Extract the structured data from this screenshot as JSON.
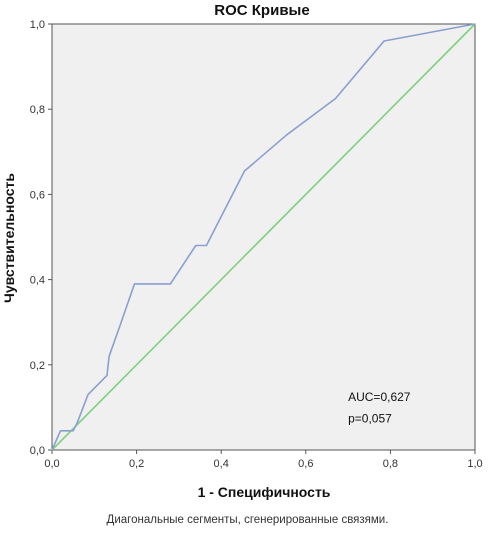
{
  "chart_data": {
    "type": "line",
    "title": "ROC Кривые",
    "xlabel": "1 - Специфичность",
    "ylabel": "Чувствительность",
    "xlim": [
      0,
      1
    ],
    "ylim": [
      0,
      1
    ],
    "x_ticks": [
      "0,0",
      "0,2",
      "0,4",
      "0,6",
      "0,8",
      "1,0"
    ],
    "y_ticks": [
      "0,0",
      "0,2",
      "0,4",
      "0,6",
      "0,8",
      "1,0"
    ],
    "grid": false,
    "series": [
      {
        "color": "#8a9fd0",
        "points": [
          [
            0.0,
            0.0
          ],
          [
            0.02,
            0.045
          ],
          [
            0.05,
            0.045
          ],
          [
            0.06,
            0.065
          ],
          [
            0.085,
            0.13
          ],
          [
            0.13,
            0.175
          ],
          [
            0.135,
            0.22
          ],
          [
            0.16,
            0.29
          ],
          [
            0.195,
            0.39
          ],
          [
            0.28,
            0.39
          ],
          [
            0.34,
            0.48
          ],
          [
            0.365,
            0.48
          ],
          [
            0.455,
            0.655
          ],
          [
            0.555,
            0.74
          ],
          [
            0.67,
            0.825
          ],
          [
            0.785,
            0.96
          ],
          [
            1.0,
            1.0
          ]
        ]
      },
      {
        "color": "#7fd07f",
        "points": [
          [
            0.0,
            0.0
          ],
          [
            1.0,
            1.0
          ]
        ]
      }
    ],
    "annotations": [
      "AUC=0,627",
      "p=0,057"
    ]
  },
  "footnote": "Диагональные сегменты, сгенерированные связями."
}
